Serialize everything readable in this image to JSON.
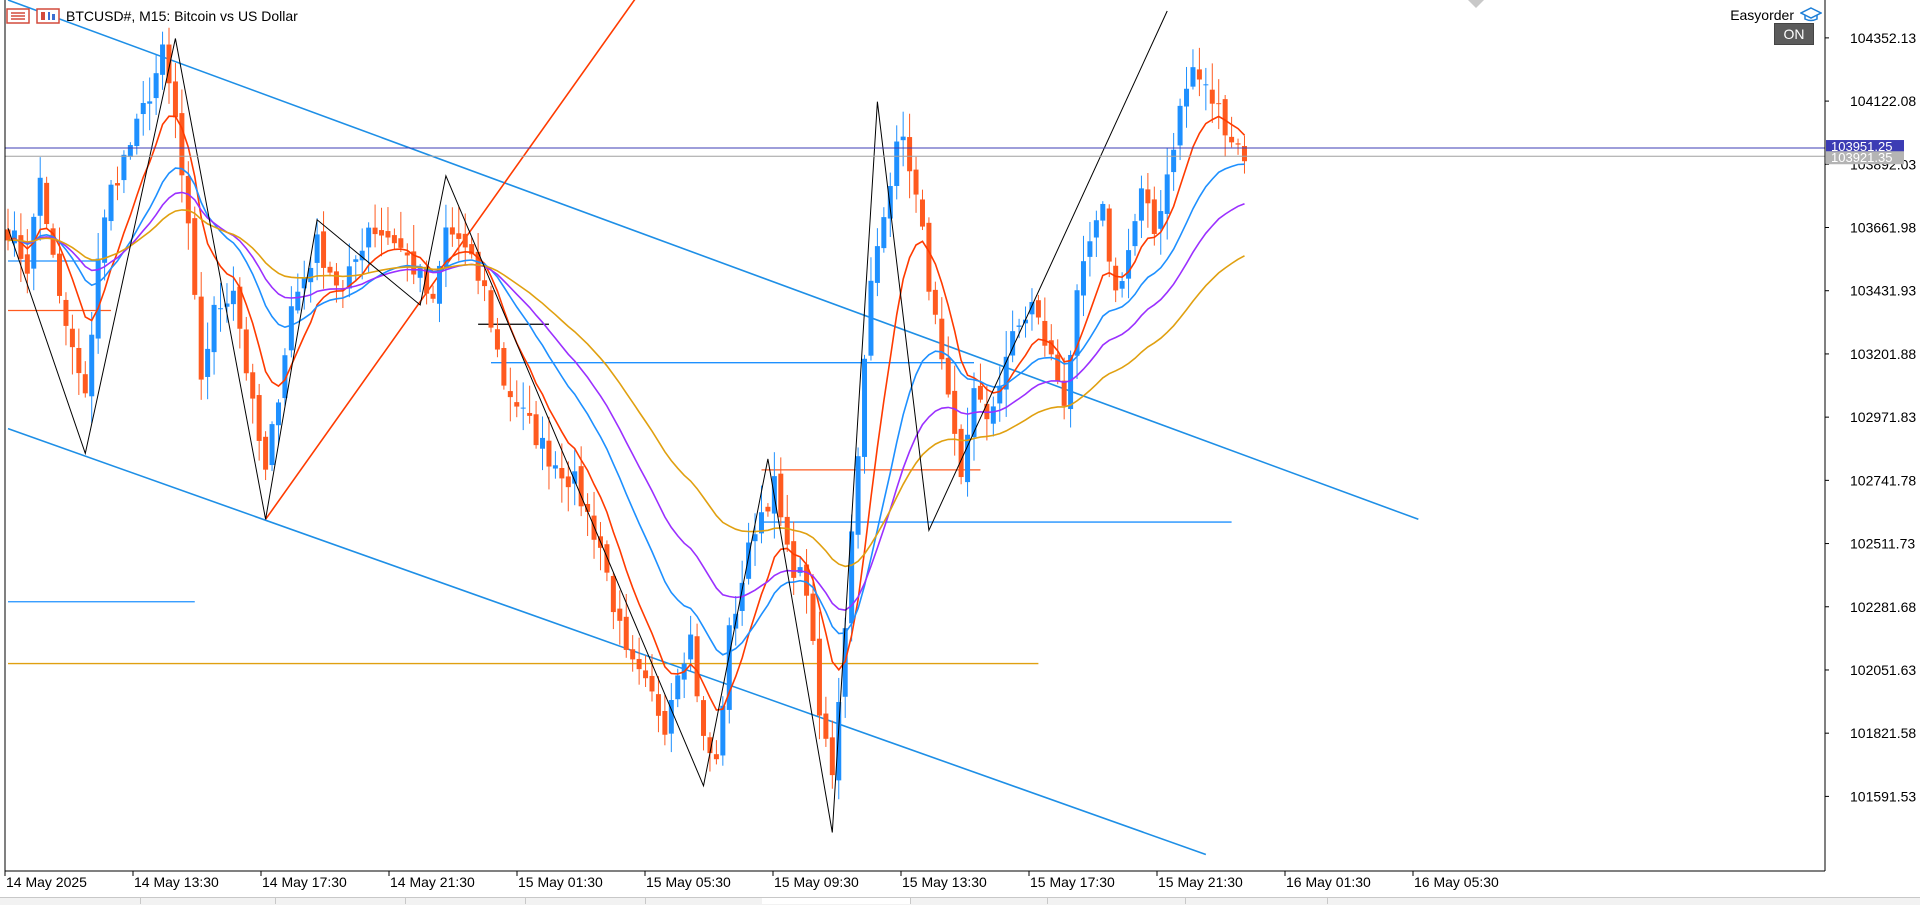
{
  "header": {
    "title": "BTCUSD#, M15:  Bitcoin vs US Dollar",
    "menu_icon": "menu-icon",
    "symbols_icon": "symbols-icon"
  },
  "expert": {
    "name": "Easyorder",
    "icon": "graduation-cap-icon",
    "status": "ON"
  },
  "chart_data": {
    "type": "candlestick",
    "symbol": "BTCUSD#",
    "timeframe": "M15",
    "description": "Bitcoin vs US Dollar",
    "ylim": [
      101320,
      104490
    ],
    "price_ticks": [
      "104352.13",
      "104122.08",
      "103892.03",
      "103661.98",
      "103431.93",
      "103201.88",
      "102971.83",
      "102741.78",
      "102511.73",
      "102281.68",
      "102051.63",
      "101821.58",
      "101591.53"
    ],
    "time_labels": [
      "14 May 2025",
      "14 May 13:30",
      "14 May 17:30",
      "14 May 21:30",
      "15 May 01:30",
      "15 May 05:30",
      "15 May 09:30",
      "15 May 13:30",
      "15 May 17:30",
      "15 May 21:30",
      "16 May 01:30",
      "16 May 05:30"
    ],
    "bid_label": "103951.25",
    "ask_label": "103921.35",
    "colors": {
      "bull": "#1e90ff",
      "bear": "#ff5a1f",
      "channel": "#1e8fe6",
      "ma_fast": "#ff3b00",
      "ma_mid": "#1e90ff",
      "ma_slow": "#9b30ff",
      "ma_long": "#e0a010",
      "zigzag": "#000000",
      "trend": "#ff3b00",
      "bid_line": "#3c3cb4",
      "ask_line": "#a0a0a0",
      "level_gold": "#e0a010"
    },
    "waypoints": [
      [
        0,
        103660
      ],
      [
        3,
        103520
      ],
      [
        5,
        103840
      ],
      [
        8,
        103390
      ],
      [
        12,
        103030
      ],
      [
        14,
        103560
      ],
      [
        16,
        103800
      ],
      [
        20,
        104020
      ],
      [
        24,
        104290
      ],
      [
        26,
        104050
      ],
      [
        28,
        103640
      ],
      [
        30,
        103120
      ],
      [
        32,
        103350
      ],
      [
        35,
        103450
      ],
      [
        38,
        103000
      ],
      [
        40,
        102760
      ],
      [
        44,
        103370
      ],
      [
        48,
        103600
      ],
      [
        52,
        103420
      ],
      [
        56,
        103670
      ],
      [
        60,
        103620
      ],
      [
        64,
        103480
      ],
      [
        66,
        103370
      ],
      [
        68,
        103650
      ],
      [
        70,
        103620
      ],
      [
        74,
        103430
      ],
      [
        77,
        103100
      ],
      [
        80,
        102980
      ],
      [
        84,
        102830
      ],
      [
        88,
        102730
      ],
      [
        92,
        102500
      ],
      [
        96,
        102090
      ],
      [
        100,
        101950
      ],
      [
        102,
        101860
      ],
      [
        104,
        102070
      ],
      [
        106,
        102170
      ],
      [
        108,
        101790
      ],
      [
        110,
        101710
      ],
      [
        112,
        102180
      ],
      [
        116,
        102580
      ],
      [
        119,
        102720
      ],
      [
        121,
        102470
      ],
      [
        124,
        102350
      ],
      [
        126,
        101880
      ],
      [
        128,
        101690
      ],
      [
        130,
        102230
      ],
      [
        132,
        102870
      ],
      [
        134,
        103450
      ],
      [
        136,
        103700
      ],
      [
        138,
        104010
      ],
      [
        140,
        103900
      ],
      [
        142,
        103630
      ],
      [
        145,
        103150
      ],
      [
        148,
        102730
      ],
      [
        150,
        103100
      ],
      [
        152,
        102930
      ],
      [
        155,
        103200
      ],
      [
        157,
        103300
      ],
      [
        159,
        103380
      ],
      [
        162,
        103180
      ],
      [
        164,
        103040
      ],
      [
        166,
        103390
      ],
      [
        168,
        103600
      ],
      [
        170,
        103710
      ],
      [
        172,
        103420
      ],
      [
        174,
        103580
      ],
      [
        176,
        103780
      ],
      [
        178,
        103640
      ],
      [
        180,
        103860
      ],
      [
        182,
        104090
      ],
      [
        184,
        104240
      ],
      [
        186,
        104160
      ],
      [
        188,
        104090
      ],
      [
        190,
        103990
      ],
      [
        192,
        103930
      ]
    ],
    "moving_averages": [
      {
        "key": "ma_fast",
        "period": 9
      },
      {
        "key": "ma_mid",
        "period": 21
      },
      {
        "key": "ma_slow",
        "period": 34
      },
      {
        "key": "ma_long",
        "period": 55
      }
    ],
    "zigzag": [
      [
        0,
        103660
      ],
      [
        12,
        102840
      ],
      [
        26,
        104350
      ],
      [
        40,
        102600
      ],
      [
        48,
        103690
      ],
      [
        64,
        103380
      ],
      [
        68,
        103850
      ],
      [
        108,
        101630
      ],
      [
        118,
        102820
      ],
      [
        128,
        101460
      ],
      [
        135,
        104120
      ],
      [
        143,
        102560
      ],
      [
        180,
        104450
      ]
    ],
    "trendline": {
      "from": [
        40,
        102600
      ],
      "to": [
        140,
        105900
      ]
    },
    "channel": {
      "upper": {
        "from": [
          0,
          104490
        ],
        "to": [
          219,
          102600
        ]
      },
      "lower": {
        "from": [
          0,
          102930
        ],
        "to": [
          186,
          101380
        ]
      }
    },
    "bid": 103951.25,
    "ask": 103921.35,
    "levels": [
      {
        "color": "bear",
        "price": 103360,
        "x0": 0,
        "x1": 16
      },
      {
        "color": "bull",
        "price": 103540,
        "x0": 0,
        "x1": 14
      },
      {
        "color": "bull",
        "price": 102300,
        "x0": 0,
        "x1": 29
      },
      {
        "color": "level_gold",
        "price": 102075,
        "x0": 0,
        "x1": 160
      },
      {
        "color": "zigzag",
        "price": 103310,
        "x0": 73,
        "x1": 84
      },
      {
        "color": "bull",
        "price": 103170,
        "x0": 75,
        "x1": 150
      },
      {
        "color": "bear",
        "price": 102780,
        "x0": 117,
        "x1": 151
      },
      {
        "color": "bull",
        "price": 102590,
        "x0": 117,
        "x1": 190
      }
    ]
  }
}
